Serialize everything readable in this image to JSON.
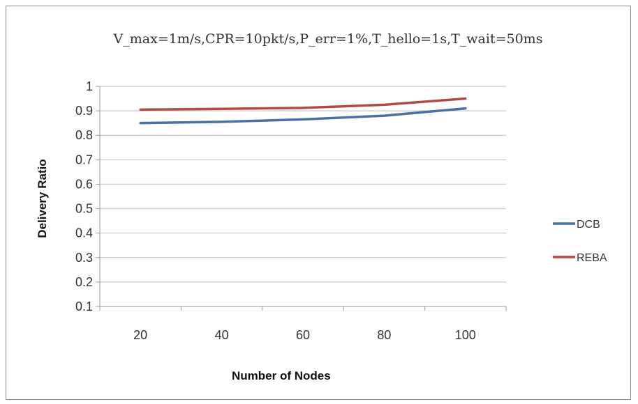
{
  "chart_data": {
    "type": "line",
    "title": "V_max=1m/s,CPR=10pkt/s,P_err=1%,T_hello=1s,T_wait=50ms",
    "xlabel": "Number of Nodes",
    "ylabel": "Delivery Ratio",
    "x": [
      20,
      40,
      60,
      80,
      100
    ],
    "x_tick_labels": [
      "20",
      "40",
      "60",
      "80",
      "100"
    ],
    "y_tick_labels": [
      "0.1",
      "0.2",
      "0.3",
      "0.4",
      "0.5",
      "0.6",
      "0.7",
      "0.8",
      "0.9",
      "1"
    ],
    "ylim": [
      0.1,
      1.0
    ],
    "grid": true,
    "legend_position": "right",
    "series": [
      {
        "name": "DCB",
        "color": "#4a70a8",
        "values": [
          0.85,
          0.855,
          0.865,
          0.88,
          0.91
        ]
      },
      {
        "name": "REBA",
        "color": "#b24a47",
        "values": [
          0.905,
          0.908,
          0.912,
          0.925,
          0.95
        ]
      }
    ]
  }
}
